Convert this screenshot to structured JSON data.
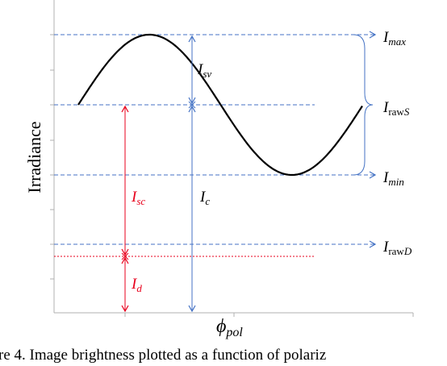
{
  "axis_labels": {
    "y": "Irradiance",
    "x": {
      "main": "ϕ",
      "sub": "pol"
    }
  },
  "levels": [
    {
      "main": "I",
      "sub": "max"
    },
    {
      "main": "I",
      "sub": "raw",
      "sub2": "S"
    },
    {
      "main": "I",
      "sub": "min"
    },
    {
      "main": "I",
      "sub": "raw",
      "sub2": "D"
    }
  ],
  "spans": [
    {
      "main": "I",
      "sub": "sv"
    },
    {
      "main": "I",
      "sub": "c"
    },
    {
      "main": "I",
      "sub": "sc"
    },
    {
      "main": "I",
      "sub": "d"
    }
  ],
  "caption": "re 4. Image brightness plotted as a function of polariz"
}
